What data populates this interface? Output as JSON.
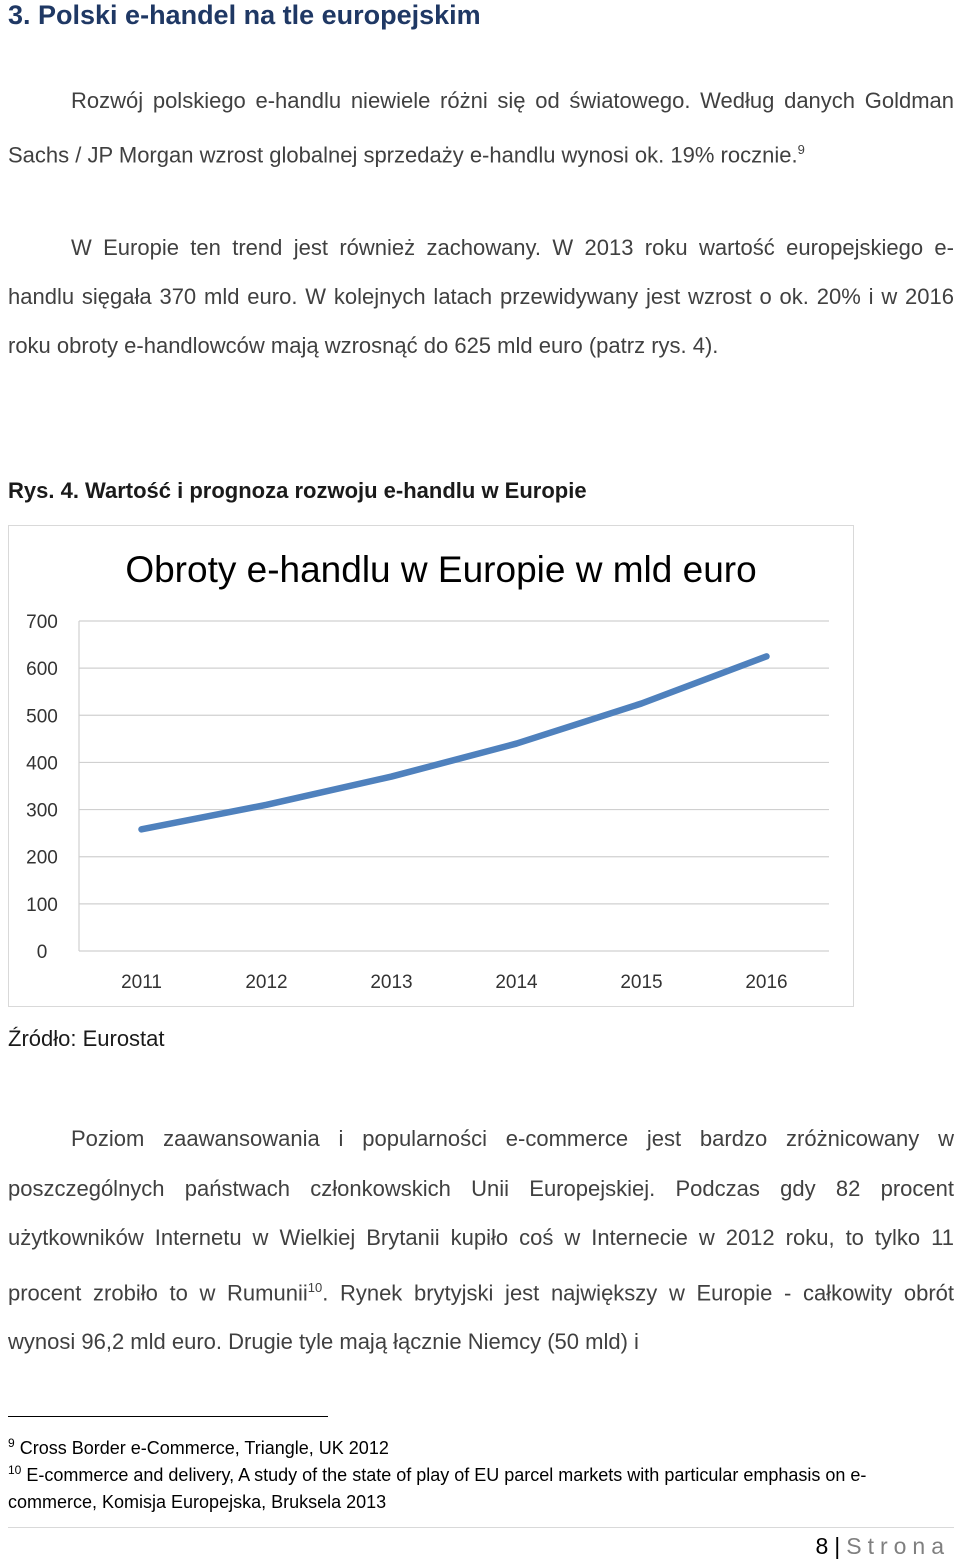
{
  "heading": "3. Polski e-handel na tle europejskim",
  "para1": {
    "text": "Rozwój polskiego e-handlu niewiele różni się od światowego. Według danych Goldman Sachs / JP Morgan wzrost globalnej sprzedaży e-handlu wynosi ok. 19% rocznie.",
    "fnref": "9"
  },
  "para2": {
    "text": "W Europie ten trend jest również zachowany. W 2013 roku wartość europejskiego e-handlu sięgała 370 mld euro. W kolejnych latach przewidywany jest wzrost o ok. 20% i w 2016 roku obroty e-handlowców mają wzrosnąć do 625 mld euro (patrz rys. 4)."
  },
  "figure_caption": "Rys. 4. Wartość i prognoza rozwoju e-handlu w Europie",
  "chart_data": {
    "type": "line",
    "title": "Obroty e-handlu w Europie w mld euro",
    "categories": [
      "2011",
      "2012",
      "2013",
      "2014",
      "2015",
      "2016"
    ],
    "values": [
      258,
      310,
      370,
      440,
      525,
      625
    ],
    "ylim": [
      0,
      700
    ],
    "yticks": [
      "0",
      "100",
      "200",
      "300",
      "400",
      "500",
      "600",
      "700"
    ],
    "grid": true,
    "line_color": "#4f81bd"
  },
  "source": "Źródło: Eurostat",
  "para3": {
    "text_a": "Poziom zaawansowania i popularności e-commerce jest bardzo zróżnicowany w poszczególnych państwach członkowskich Unii Europejskiej. Podczas gdy 82 procent użytkowników Internetu w Wielkiej Brytanii kupiło coś w Internecie w 2012 roku, to tylko 11 procent zrobiło to w Rumunii",
    "fnref": "10",
    "text_b": ". Rynek brytyjski jest największy w Europie - całkowity obrót wynosi 96,2 mld euro. Drugie tyle mają łącznie Niemcy (50 mld) i"
  },
  "footnotes": [
    {
      "num": "9",
      "text": "Cross Border e-Commerce, Triangle, UK 2012"
    },
    {
      "num": "10",
      "text": "E-commerce and delivery,  A study of the state of play of EU parcel markets with particular emphasis on e-commerce, Komisja Europejska, Bruksela 2013"
    }
  ],
  "footer": {
    "page_number": "8",
    "separator": "|",
    "label": "Strona"
  }
}
